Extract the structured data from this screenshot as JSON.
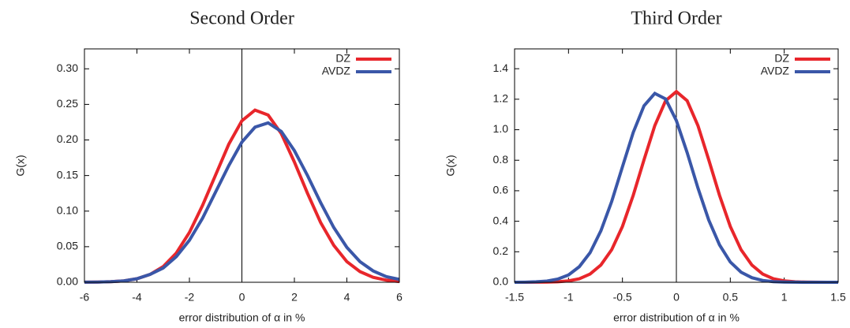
{
  "chart_data": [
    {
      "type": "line",
      "title": "Second Order",
      "x_label": "error distribution of α in %",
      "y_label": "G(x)",
      "x": [
        -6,
        -5.5,
        -5,
        -4.5,
        -4,
        -3.5,
        -3,
        -2.5,
        -2,
        -1.5,
        -1,
        -0.5,
        0,
        0.5,
        1,
        1.5,
        2,
        2.5,
        3,
        3.5,
        4,
        4.5,
        5,
        5.5,
        6
      ],
      "series": [
        {
          "name": "DZ",
          "color": "#e8262b",
          "values": [
            0.0001,
            0.0003,
            0.0008,
            0.002,
            0.005,
            0.011,
            0.022,
            0.041,
            0.07,
            0.108,
            0.151,
            0.194,
            0.227,
            0.242,
            0.235,
            0.209,
            0.169,
            0.125,
            0.084,
            0.052,
            0.029,
            0.015,
            0.007,
            0.003,
            0.001
          ]
        },
        {
          "name": "AVDZ",
          "color": "#3a57a8",
          "values": [
            0.0001,
            0.0003,
            0.0009,
            0.002,
            0.005,
            0.011,
            0.02,
            0.036,
            0.059,
            0.09,
            0.127,
            0.164,
            0.197,
            0.218,
            0.224,
            0.212,
            0.185,
            0.15,
            0.112,
            0.077,
            0.049,
            0.029,
            0.016,
            0.008,
            0.004
          ]
        }
      ],
      "xlim": [
        -6,
        6
      ],
      "xticks": [
        -6,
        -4,
        -2,
        0,
        2,
        4,
        6
      ],
      "ylim": [
        0,
        0.328
      ],
      "yticks": [
        {
          "value": 0,
          "label": "0.00"
        },
        {
          "value": 0.05,
          "label": "0.05"
        },
        {
          "value": 0.1,
          "label": "0.10"
        },
        {
          "value": 0.15,
          "label": "0.15"
        },
        {
          "value": 0.2,
          "label": "0.20"
        },
        {
          "value": 0.25,
          "label": "0.25"
        },
        {
          "value": 0.3,
          "label": "0.30"
        }
      ],
      "legend": "top-right"
    },
    {
      "type": "line",
      "title": "Third Order",
      "x_label": "error distribution of α in %",
      "y_label": "G(x)",
      "x": [
        -1.5,
        -1.4,
        -1.3,
        -1.2,
        -1.1,
        -1,
        -0.9,
        -0.8,
        -0.7,
        -0.6,
        -0.5,
        -0.4,
        -0.3,
        -0.2,
        -0.1,
        0,
        0.1,
        0.2,
        0.3,
        0.4,
        0.5,
        0.6,
        0.7,
        0.8,
        0.9,
        1,
        1.1,
        1.2,
        1.3,
        1.4,
        1.5
      ],
      "series": [
        {
          "name": "DZ",
          "color": "#e8262b",
          "values": [
            0,
            0.0001,
            0.0004,
            0.001,
            0.003,
            0.009,
            0.023,
            0.054,
            0.113,
            0.213,
            0.366,
            0.57,
            0.803,
            1.027,
            1.19,
            1.25,
            1.19,
            1.027,
            0.803,
            0.57,
            0.366,
            0.213,
            0.113,
            0.054,
            0.023,
            0.009,
            0.003,
            0.001,
            0.0004,
            0.0001,
            0
          ]
        },
        {
          "name": "AVDZ",
          "color": "#3a57a8",
          "values": [
            0.0003,
            0.0009,
            0.003,
            0.008,
            0.021,
            0.048,
            0.102,
            0.194,
            0.337,
            0.529,
            0.757,
            0.982,
            1.157,
            1.238,
            1.202,
            1.06,
            0.85,
            0.618,
            0.408,
            0.245,
            0.133,
            0.066,
            0.03,
            0.012,
            0.004,
            0.0015,
            0.0005,
            0.0001,
            0,
            0,
            0
          ]
        }
      ],
      "xlim": [
        -1.5,
        1.5
      ],
      "xticks": [
        -1.5,
        -1,
        -0.5,
        0,
        0.5,
        1,
        1.5
      ],
      "ylim": [
        0,
        1.53
      ],
      "yticks": [
        {
          "value": 0,
          "label": "0.0"
        },
        0.2,
        0.4,
        0.6,
        0.8,
        {
          "value": 1,
          "label": "1.0"
        },
        1.2,
        1.4
      ],
      "legend": "top-right"
    }
  ]
}
